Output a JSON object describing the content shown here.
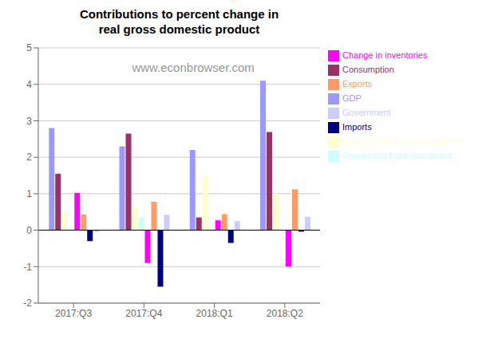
{
  "chart_data": {
    "type": "bar",
    "title": "Contributions to percent change in\nreal gross domestic product",
    "annotations": [
      "www.econbrowser.com"
    ],
    "categories": [
      "2017:Q3",
      "2017:Q4",
      "2018:Q1",
      "2018:Q2"
    ],
    "series": [
      {
        "name": "GDP",
        "color": "#9999ff",
        "values": [
          2.8,
          2.3,
          2.2,
          4.1
        ]
      },
      {
        "name": "Consumption",
        "color": "#993366",
        "values": [
          1.55,
          2.65,
          0.35,
          2.69
        ]
      },
      {
        "name": "Nonresidential fixed investment",
        "color": "#ffffcc",
        "values": [
          0.5,
          0.65,
          1.47,
          1.0
        ]
      },
      {
        "name": "Residential fixed investment",
        "color": "#ccffff",
        "values": [
          0.0,
          0.35,
          -0.05,
          0.0
        ]
      },
      {
        "name": "Change in inventories",
        "color": "#ff00ff",
        "values": [
          1.02,
          -0.9,
          0.27,
          -1.0
        ]
      },
      {
        "name": "Exports",
        "color": "#ff9966",
        "values": [
          0.43,
          0.78,
          0.44,
          1.12
        ]
      },
      {
        "name": "Imports",
        "color": "#000080",
        "values": [
          -0.3,
          -1.55,
          -0.35,
          -0.04
        ]
      },
      {
        "name": "Government",
        "color": "#ccccff",
        "values": [
          -0.05,
          0.42,
          0.25,
          0.37
        ]
      }
    ],
    "ylim": [
      -2,
      5
    ],
    "yticks": [
      -2,
      -1,
      0,
      1,
      2,
      3,
      4,
      5
    ],
    "grid": true,
    "legend": "right"
  }
}
